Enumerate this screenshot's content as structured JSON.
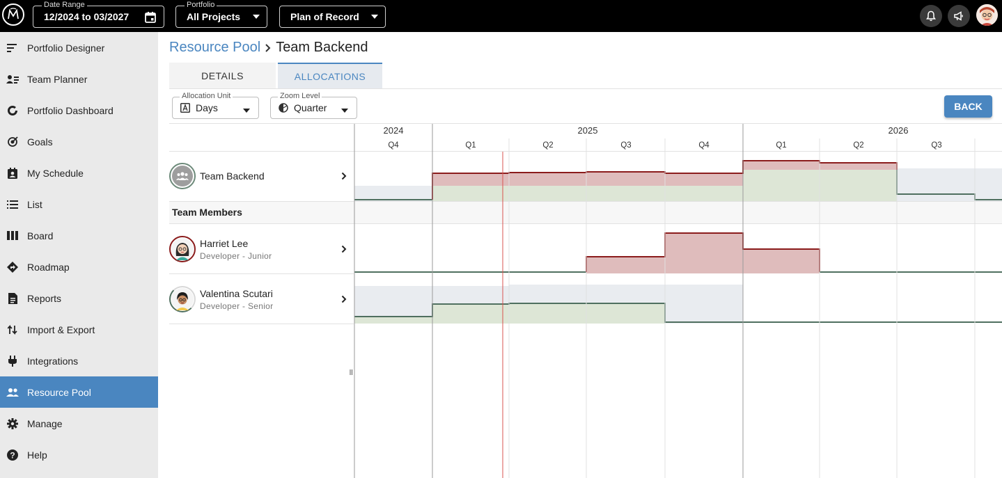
{
  "topbar": {
    "logo_icon": "app-logo-icon",
    "date_range": {
      "legend": "Date Range",
      "value": "12/2024 to 03/2027"
    },
    "portfolio": {
      "legend": "Portfolio",
      "value": "All Projects"
    },
    "plan": {
      "value": "Plan of Record"
    },
    "icons": [
      "bell-icon",
      "megaphone-icon",
      "user-avatar"
    ]
  },
  "sidebar": {
    "items": [
      {
        "label": "Portfolio Designer",
        "icon": "portfolio-designer-icon"
      },
      {
        "label": "Team Planner",
        "icon": "team-planner-icon"
      },
      {
        "label": "Portfolio Dashboard",
        "icon": "dashboard-icon"
      },
      {
        "label": "Goals",
        "icon": "goals-icon"
      },
      {
        "label": "My Schedule",
        "icon": "schedule-icon"
      },
      {
        "label": "List",
        "icon": "list-icon"
      },
      {
        "label": "Board",
        "icon": "board-icon"
      },
      {
        "label": "Roadmap",
        "icon": "roadmap-icon"
      },
      {
        "label": "Reports",
        "icon": "reports-icon"
      },
      {
        "label": "Import & Export",
        "icon": "import-export-icon"
      },
      {
        "label": "Integrations",
        "icon": "plug-icon"
      },
      {
        "label": "Resource Pool",
        "icon": "people-icon",
        "active": true
      },
      {
        "label": "Manage",
        "icon": "gear-icon"
      },
      {
        "label": "Help",
        "icon": "help-icon"
      }
    ]
  },
  "breadcrumb": {
    "parent": "Resource Pool",
    "current": "Team Backend"
  },
  "tabs": [
    {
      "label": "DETAILS"
    },
    {
      "label": "ALLOCATIONS",
      "active": true
    }
  ],
  "controls": {
    "allocation_unit": {
      "legend": "Allocation Unit",
      "value": "Days"
    },
    "zoom_level": {
      "legend": "Zoom Level",
      "value": "Quarter"
    },
    "back_label": "BACK"
  },
  "grid": {
    "team": {
      "name": "Team Backend"
    },
    "section_label": "Team Members",
    "members": [
      {
        "name": "Harriet Lee",
        "role": "Developer - Junior"
      },
      {
        "name": "Valentina Scutari",
        "role": "Developer - Senior"
      }
    ]
  },
  "timeline": {
    "years": [
      "2024",
      "2025",
      "2026"
    ],
    "quarters": [
      "Q4",
      "Q1",
      "Q2",
      "Q3",
      "Q4",
      "Q1",
      "Q2",
      "Q3"
    ],
    "colors": {
      "over": "#dfbcbc",
      "over_line": "#8b1c1c",
      "under": "#dde6d6",
      "capacity": "#e9ecf0",
      "under_line": "#4f6f5f",
      "today": "#d9534f"
    }
  }
}
